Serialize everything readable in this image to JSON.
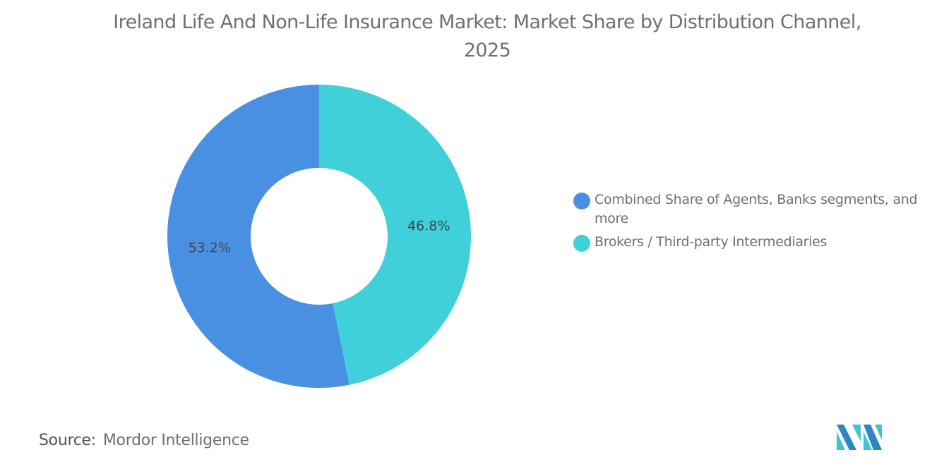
{
  "chart_data": {
    "type": "pie",
    "variant": "donut",
    "title": "Ireland Life And Non-Life Insurance Market: Market Share by Distribution Channel, 2025",
    "slices": [
      {
        "label": "Brokers / Third-party Intermediaries",
        "value": 46.8,
        "display": "46.8%",
        "color": "#40D0DA"
      },
      {
        "label": "Combined Share of Agents, Banks segments, and more",
        "value": 53.2,
        "display": "53.2%",
        "color": "#4A90E2"
      }
    ],
    "legend": [
      {
        "label": "Combined Share of Agents, Banks segments, and more",
        "color": "#4A90E2"
      },
      {
        "label": "Brokers / Third-party Intermediaries",
        "color": "#40D0DA"
      }
    ],
    "legend_position": "right"
  },
  "source": {
    "label": "Source:",
    "value": "Mordor Intelligence"
  },
  "logo": {
    "text": "Mordor Intelligence logo"
  }
}
